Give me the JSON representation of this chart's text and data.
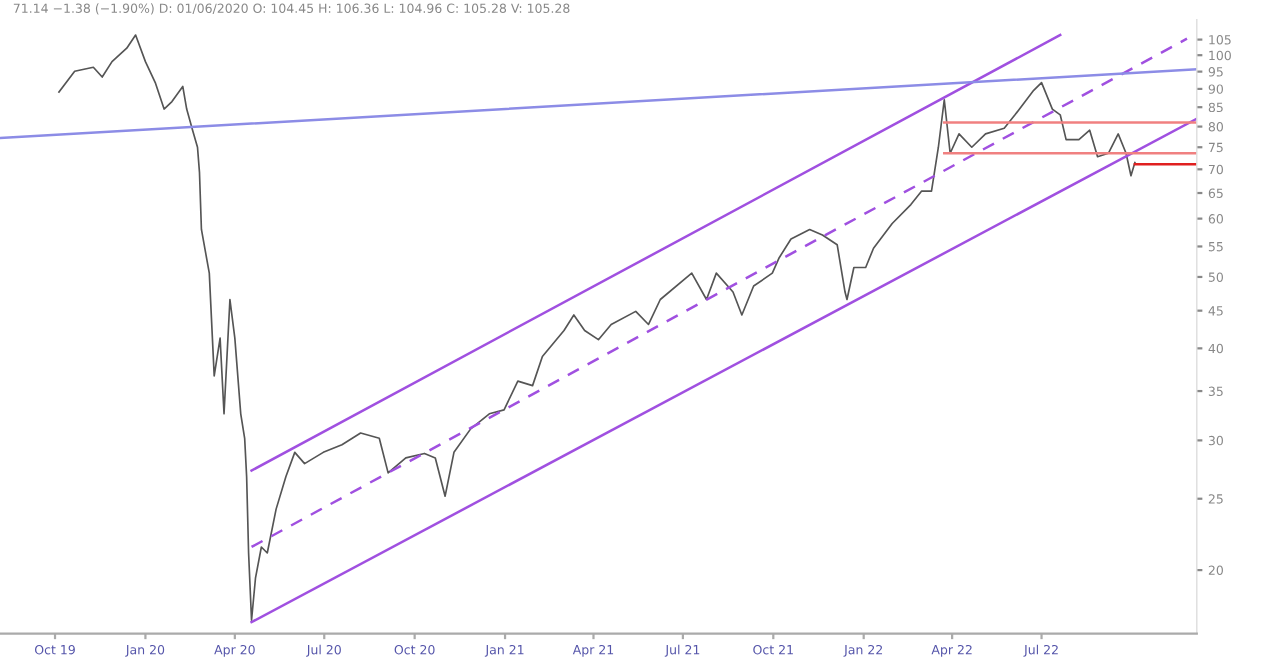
{
  "chart_data": {
    "type": "line",
    "annotations": [
      "71.14 −1.38 (−1.90%) D: 01/06/2020 O: 104.45 H: 106.36 L: 104.96 C: 105.28 V: 105.28"
    ],
    "series": [
      {
        "color": "#555555",
        "x": [
          "2019-10-05",
          "2019-10-21",
          "2019-11-09",
          "2019-11-18",
          "2019-11-28",
          "2019-12-13",
          "2019-12-22",
          "2020-01-01",
          "2020-01-11",
          "2020-01-20",
          "2020-01-28",
          "2020-02-08",
          "2020-02-12",
          "2020-02-18",
          "2020-02-23",
          "2020-02-25",
          "2020-02-27",
          "2020-03-06",
          "2020-03-11",
          "2020-03-17",
          "2020-03-21",
          "2020-03-27",
          "2020-04-01",
          "2020-04-07",
          "2020-04-11",
          "2020-04-13",
          "2020-04-15",
          "2020-04-18",
          "2020-04-22",
          "2020-04-28",
          "2020-05-04",
          "2020-05-13",
          "2020-05-23",
          "2020-06-01",
          "2020-06-11",
          "2020-06-30",
          "2020-07-19",
          "2020-08-07",
          "2020-08-26",
          "2020-09-04",
          "2020-09-22",
          "2020-10-11",
          "2020-10-22",
          "2020-11-01",
          "2020-11-10",
          "2020-11-27",
          "2020-12-16",
          "2020-12-31",
          "2021-01-14",
          "2021-01-29",
          "2021-02-08",
          "2021-03-02",
          "2021-03-12",
          "2021-03-23",
          "2021-04-06",
          "2021-04-19",
          "2021-05-14",
          "2021-05-27",
          "2021-06-08",
          "2021-07-10",
          "2021-07-25",
          "2021-08-04",
          "2021-08-21",
          "2021-08-30",
          "2021-09-11",
          "2021-09-30",
          "2021-10-07",
          "2021-10-19",
          "2021-11-07",
          "2021-11-20",
          "2021-12-05",
          "2021-12-13",
          "2021-12-15",
          "2021-12-22",
          "2022-01-03",
          "2022-01-11",
          "2022-01-30",
          "2022-02-18",
          "2022-03-01",
          "2022-03-11",
          "2022-03-18",
          "2022-03-24",
          "2022-03-30",
          "2022-04-08",
          "2022-04-21",
          "2022-05-05",
          "2022-05-24",
          "2022-06-04",
          "2022-06-23",
          "2022-07-01",
          "2022-07-12",
          "2022-07-20",
          "2022-07-26",
          "2022-08-08",
          "2022-08-19",
          "2022-08-27",
          "2022-09-07",
          "2022-09-17",
          "2022-09-25",
          "2022-09-30",
          "2022-10-04"
        ],
        "values": [
          89.1,
          95.1,
          96.3,
          93.4,
          98.0,
          102.2,
          106.5,
          98.0,
          91.8,
          84.5,
          86.5,
          90.7,
          84.5,
          79.1,
          75.0,
          69.4,
          58.0,
          50.6,
          36.7,
          41.3,
          32.6,
          46.6,
          41.3,
          32.6,
          30.2,
          26.8,
          21.1,
          17.1,
          19.5,
          21.5,
          21.1,
          24.2,
          26.8,
          28.9,
          27.9,
          28.9,
          29.6,
          30.7,
          30.2,
          27.1,
          28.4,
          28.8,
          28.4,
          25.2,
          28.9,
          31.1,
          32.6,
          33.0,
          36.1,
          35.6,
          39.0,
          42.3,
          44.4,
          42.3,
          41.1,
          43.1,
          44.9,
          43.1,
          46.6,
          50.6,
          46.6,
          50.6,
          47.7,
          44.4,
          48.6,
          50.6,
          53.1,
          56.3,
          58.0,
          57.0,
          55.3,
          47.7,
          46.6,
          51.5,
          51.5,
          54.7,
          59.1,
          62.7,
          65.4,
          65.4,
          75.0,
          87.0,
          73.6,
          78.2,
          75.0,
          78.2,
          79.6,
          83.0,
          89.6,
          91.8,
          84.5,
          83.0,
          76.8,
          76.8,
          79.1,
          72.8,
          73.6,
          78.2,
          73.6,
          68.6,
          71.5
        ]
      },
      {
        "color": "#a050e0",
        "x": [
          "2020-04-18",
          "2022-07-20"
        ],
        "values": [
          27.3,
          106.5
        ]
      },
      {
        "color": "#a050e0",
        "x": [
          "2020-04-18",
          "2022-11-26"
        ],
        "values": [
          21.5,
          105.3
        ],
        "line_style": "dashed"
      },
      {
        "color": "#a050e0",
        "x": [
          "2020-04-18",
          "2022-12-06"
        ],
        "values": [
          17.0,
          82.0
        ]
      },
      {
        "color": "#8c8ce6",
        "x": [
          "2019-08-06",
          "2022-12-06"
        ],
        "values": [
          77.2,
          95.7
        ]
      },
      {
        "color": "#f08080",
        "x": [
          "2022-03-24",
          "2022-12-06"
        ],
        "values": [
          81.0,
          81.0
        ]
      },
      {
        "color": "#f08080",
        "x": [
          "2022-03-24",
          "2022-12-06"
        ],
        "values": [
          73.6,
          73.6
        ]
      },
      {
        "color": "#e02020",
        "x": [
          "2022-10-04",
          "2022-12-06"
        ],
        "values": [
          71.14,
          71.14
        ]
      }
    ],
    "log": true,
    "xlim": [
      "2019-08-06",
      "2022-12-06"
    ],
    "xticks": [
      {
        "value": "2019-10-01",
        "label": "Oct 19"
      },
      {
        "value": "2020-01-01",
        "label": "Jan 20"
      },
      {
        "value": "2020-04-01",
        "label": "Apr 20"
      },
      {
        "value": "2020-07-01",
        "label": "Jul 20"
      },
      {
        "value": "2020-10-01",
        "label": "Oct 20"
      },
      {
        "value": "2021-01-01",
        "label": "Jan 21"
      },
      {
        "value": "2021-04-01",
        "label": "Apr 21"
      },
      {
        "value": "2021-07-01",
        "label": "Jul 21"
      },
      {
        "value": "2021-10-01",
        "label": "Oct 21"
      },
      {
        "value": "2022-01-01",
        "label": "Jan 22"
      },
      {
        "value": "2022-04-01",
        "label": "Apr 22"
      },
      {
        "value": "2022-07-01",
        "label": "Jul 22"
      }
    ],
    "ylim": [
      16.4,
      111.7
    ],
    "yticks": [
      20,
      25,
      30,
      35,
      40,
      45,
      50,
      55,
      60,
      65,
      70,
      75,
      80,
      85,
      90,
      95,
      100,
      105
    ],
    "grid": false,
    "legend": false,
    "marker": "none",
    "line_style": "solid"
  }
}
